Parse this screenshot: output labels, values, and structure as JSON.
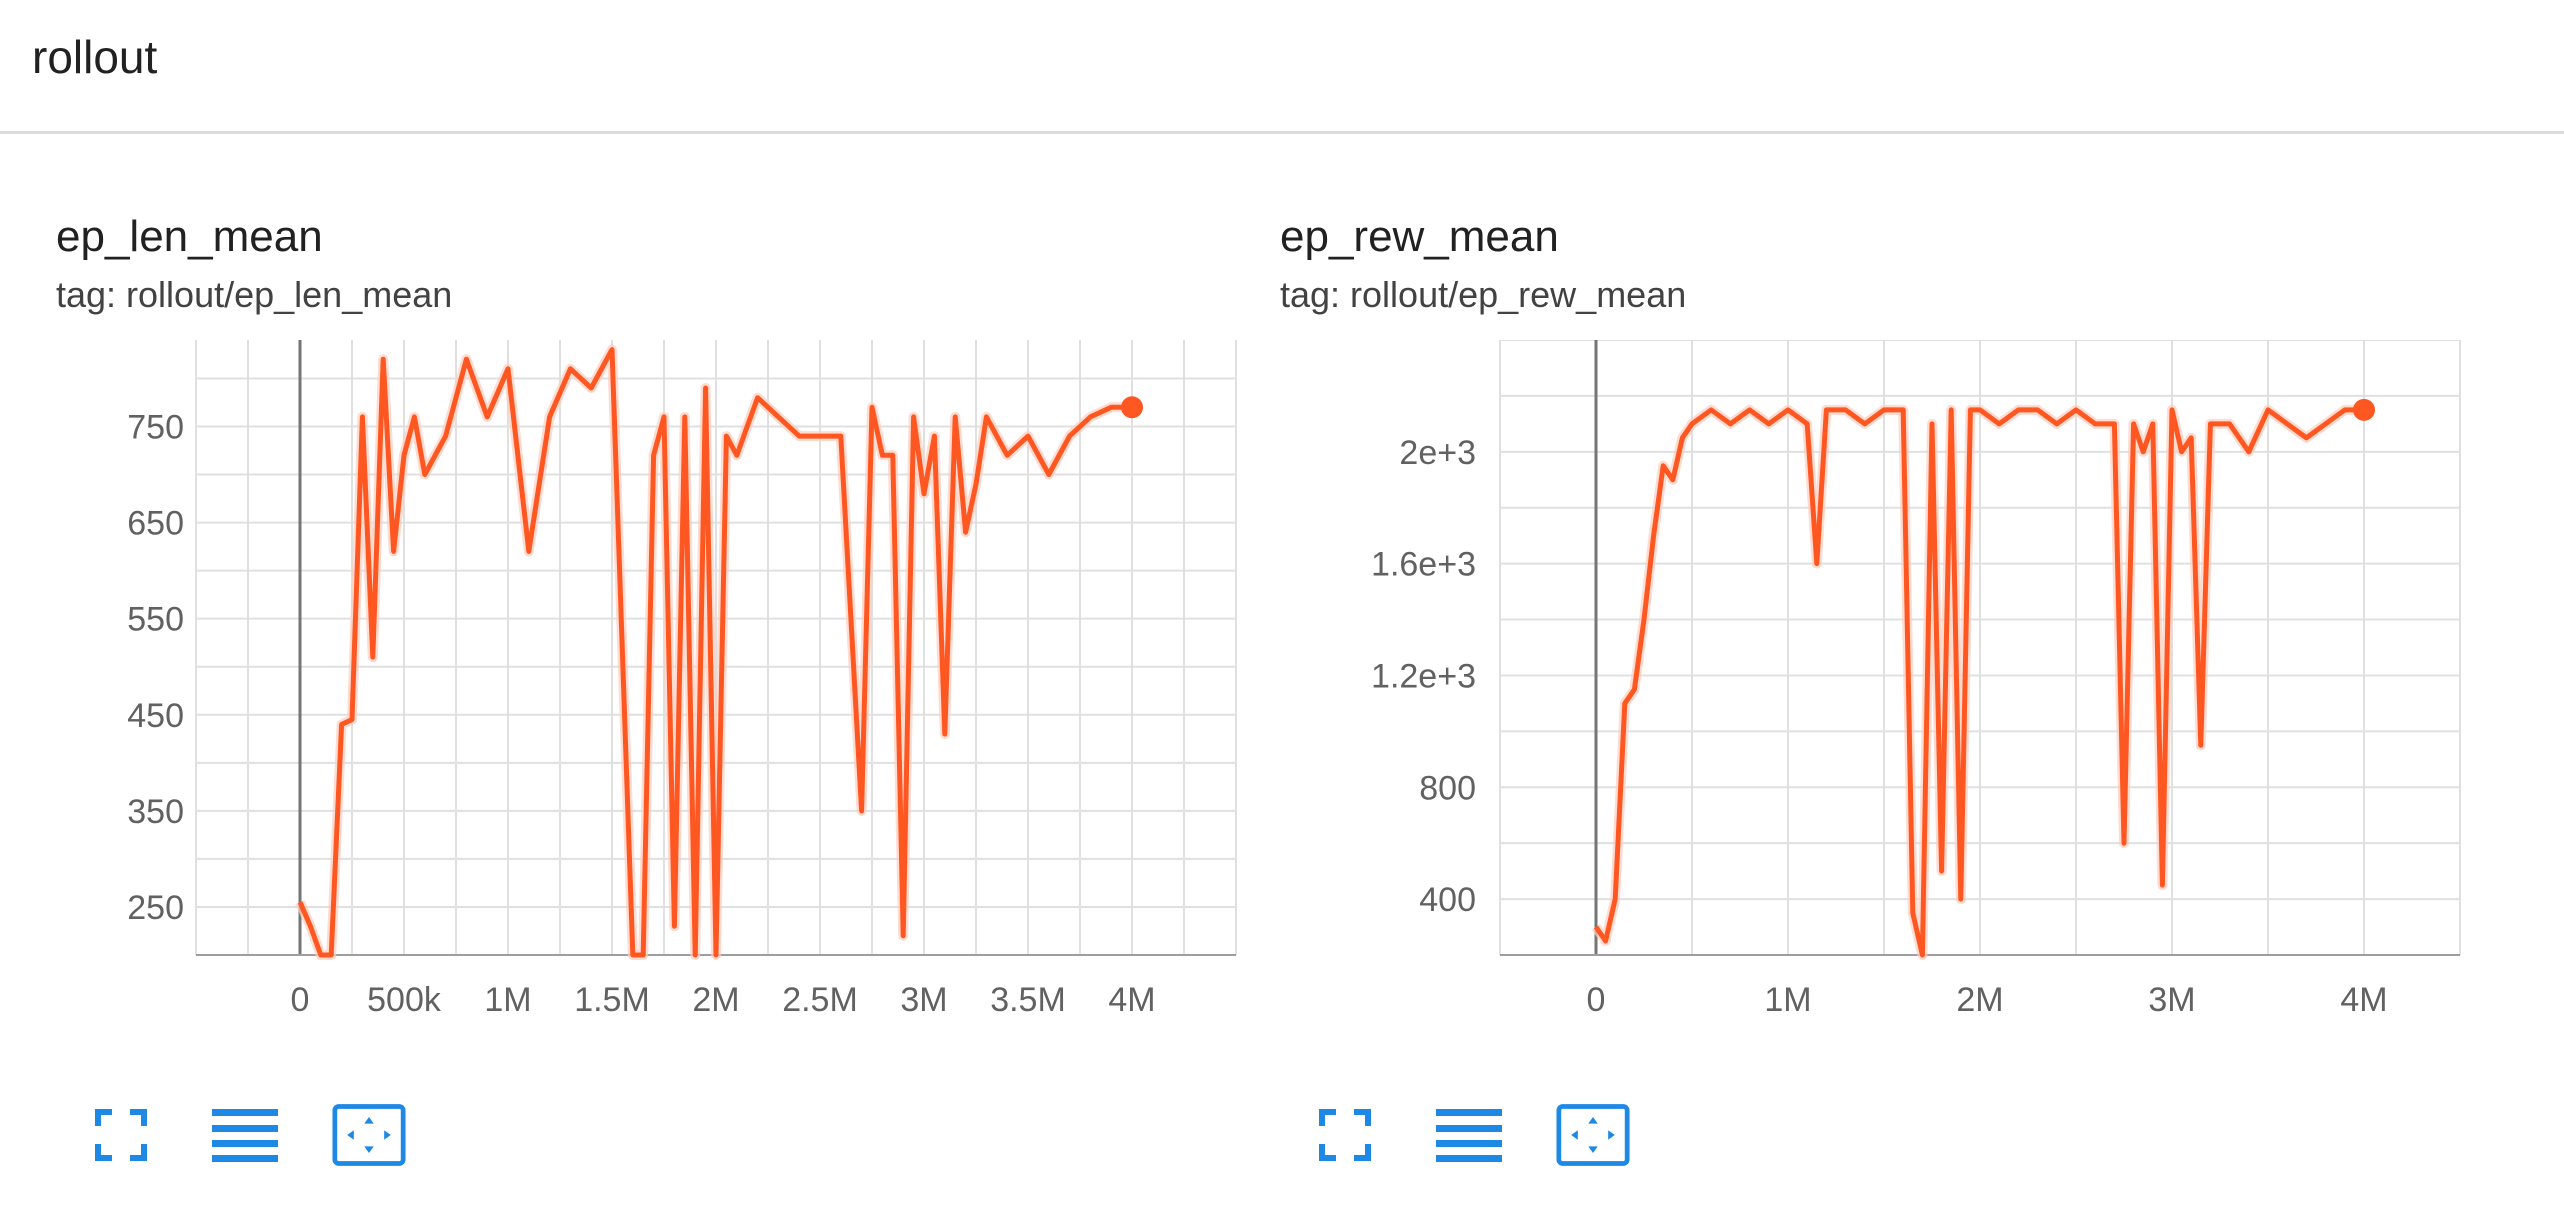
{
  "section": {
    "title": "rollout"
  },
  "cards": [
    {
      "title": "ep_len_mean",
      "tag": "tag: rollout/ep_len_mean"
    },
    {
      "title": "ep_rew_mean",
      "tag": "tag: rollout/ep_rew_mean"
    }
  ],
  "toolbar_icons": [
    "fullscreen-icon",
    "list-icon",
    "fit-domain-icon"
  ],
  "colors": {
    "series": "#ff5722",
    "series_raw": "#ffccbc",
    "grid": "#e0e0e0",
    "axis": "#9e9e9e",
    "icon": "#1e88e5"
  },
  "chart_data": [
    {
      "type": "line",
      "title": "ep_len_mean",
      "xlim": [
        -500000,
        4500000
      ],
      "ylim": [
        200,
        840
      ],
      "xticks": [
        0,
        500000,
        1000000,
        1500000,
        2000000,
        2500000,
        3000000,
        3500000,
        4000000
      ],
      "xtick_labels": [
        "0",
        "500k",
        "1M",
        "1.5M",
        "2M",
        "2.5M",
        "3M",
        "3.5M",
        "4M"
      ],
      "yticks": [
        250,
        350,
        450,
        550,
        650,
        750
      ],
      "ytick_labels": [
        "250",
        "350",
        "450",
        "550",
        "650",
        "750"
      ],
      "grid": true,
      "series": [
        {
          "x": [
            0,
            50000,
            100000,
            150000,
            200000,
            250000,
            300000,
            350000,
            400000,
            450000,
            500000,
            550000,
            600000,
            700000,
            800000,
            900000,
            1000000,
            1100000,
            1200000,
            1300000,
            1400000,
            1500000,
            1600000,
            1650000,
            1700000,
            1750000,
            1800000,
            1850000,
            1900000,
            1950000,
            2000000,
            2050000,
            2100000,
            2200000,
            2300000,
            2400000,
            2500000,
            2600000,
            2700000,
            2750000,
            2800000,
            2850000,
            2900000,
            2950000,
            3000000,
            3050000,
            3100000,
            3150000,
            3200000,
            3250000,
            3300000,
            3400000,
            3500000,
            3600000,
            3700000,
            3800000,
            3900000,
            4000000
          ],
          "y": [
            255,
            230,
            200,
            200,
            440,
            445,
            760,
            510,
            820,
            620,
            720,
            760,
            700,
            740,
            820,
            760,
            810,
            620,
            760,
            810,
            790,
            830,
            200,
            200,
            720,
            760,
            230,
            760,
            200,
            790,
            200,
            740,
            720,
            780,
            760,
            740,
            740,
            740,
            350,
            770,
            720,
            720,
            220,
            760,
            680,
            740,
            430,
            760,
            640,
            690,
            760,
            720,
            740,
            700,
            740,
            760,
            770,
            770
          ]
        }
      ]
    },
    {
      "type": "line",
      "title": "ep_rew_mean",
      "xlim": [
        -500000,
        4500000
      ],
      "ylim": [
        200,
        2400
      ],
      "xticks": [
        0,
        1000000,
        2000000,
        3000000,
        4000000
      ],
      "xtick_labels": [
        "0",
        "1M",
        "2M",
        "3M",
        "4M"
      ],
      "yticks": [
        400,
        800,
        1200,
        1600,
        2000
      ],
      "ytick_labels": [
        "400",
        "800",
        "1.2e+3",
        "1.6e+3",
        "2e+3"
      ],
      "grid": true,
      "series": [
        {
          "x": [
            0,
            50000,
            100000,
            150000,
            200000,
            250000,
            300000,
            350000,
            400000,
            450000,
            500000,
            600000,
            700000,
            800000,
            900000,
            1000000,
            1100000,
            1150000,
            1200000,
            1300000,
            1400000,
            1500000,
            1600000,
            1650000,
            1700000,
            1750000,
            1800000,
            1850000,
            1900000,
            1950000,
            2000000,
            2100000,
            2200000,
            2300000,
            2400000,
            2500000,
            2600000,
            2700000,
            2750000,
            2800000,
            2850000,
            2900000,
            2950000,
            3000000,
            3050000,
            3100000,
            3150000,
            3200000,
            3300000,
            3400000,
            3500000,
            3600000,
            3700000,
            3800000,
            3900000,
            4000000
          ],
          "y": [
            300,
            250,
            400,
            1100,
            1150,
            1400,
            1700,
            1950,
            1900,
            2050,
            2100,
            2150,
            2100,
            2150,
            2100,
            2150,
            2100,
            1600,
            2150,
            2150,
            2100,
            2150,
            2150,
            350,
            200,
            2100,
            500,
            2150,
            400,
            2150,
            2150,
            2100,
            2150,
            2150,
            2100,
            2150,
            2100,
            2100,
            600,
            2100,
            2000,
            2100,
            450,
            2150,
            2000,
            2050,
            950,
            2100,
            2100,
            2000,
            2150,
            2100,
            2050,
            2100,
            2150,
            2150
          ]
        }
      ]
    }
  ]
}
